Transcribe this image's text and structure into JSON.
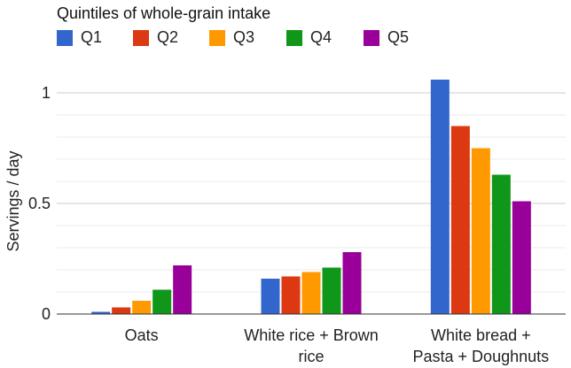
{
  "chart_data": {
    "type": "bar",
    "legend_title": "Quintiles of whole-grain intake",
    "legend_position": "top-left",
    "categories": [
      [
        "Oats"
      ],
      [
        "White rice + Brown",
        "rice"
      ],
      [
        "White bread +",
        "Pasta + Doughnuts"
      ]
    ],
    "series": [
      {
        "name": "Q1",
        "color": "#3366cc",
        "values": [
          0.01,
          0.16,
          1.06
        ]
      },
      {
        "name": "Q2",
        "color": "#dc3912",
        "values": [
          0.03,
          0.17,
          0.85
        ]
      },
      {
        "name": "Q3",
        "color": "#ff9900",
        "values": [
          0.06,
          0.19,
          0.75
        ]
      },
      {
        "name": "Q4",
        "color": "#109618",
        "values": [
          0.11,
          0.21,
          0.63
        ]
      },
      {
        "name": "Q5",
        "color": "#990099",
        "values": [
          0.22,
          0.28,
          0.51
        ]
      }
    ],
    "xlabel": "",
    "ylabel": "Servings / day",
    "ylim": [
      0,
      1.1
    ],
    "yticks": [
      {
        "value": 0,
        "label": "0"
      },
      {
        "value": 0.5,
        "label": "0.5"
      },
      {
        "value": 1,
        "label": "1"
      }
    ],
    "minor_gridlines": [
      0.1,
      0.2,
      0.3,
      0.4,
      0.6,
      0.7,
      0.8,
      0.9
    ],
    "grid": true
  }
}
